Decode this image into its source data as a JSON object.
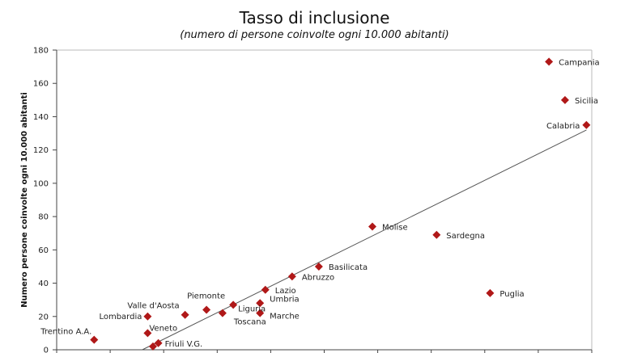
{
  "chart_data": {
    "type": "scatter",
    "title": "Tasso di inclusione",
    "subtitle": "(numero di persone coinvolte ogni 10.000 abitanti)",
    "ylabel": "Numero persone coinvolte ogni 10.000 abitanti",
    "xlabel": "",
    "ylim": [
      0,
      180
    ],
    "yticks": [
      0,
      20,
      40,
      60,
      80,
      100,
      120,
      140,
      160,
      180
    ],
    "grid": false,
    "marker_color": "#b01818",
    "trendline_color": "#555555",
    "trendline": [
      {
        "x": 0.16,
        "y": 0
      },
      {
        "x": 0.99,
        "y": 132
      }
    ],
    "points": [
      {
        "label": "Campania",
        "x": 0.92,
        "y": 173
      },
      {
        "label": "Sicilia",
        "x": 0.95,
        "y": 150
      },
      {
        "label": "Calabria",
        "x": 0.99,
        "y": 135
      },
      {
        "label": "Molise",
        "x": 0.59,
        "y": 74
      },
      {
        "label": "Sardegna",
        "x": 0.71,
        "y": 69
      },
      {
        "label": "Basilicata",
        "x": 0.49,
        "y": 50
      },
      {
        "label": "Abruzzo",
        "x": 0.44,
        "y": 44
      },
      {
        "label": "Lazio",
        "x": 0.39,
        "y": 36
      },
      {
        "label": "Puglia",
        "x": 0.81,
        "y": 34
      },
      {
        "label": "Umbria",
        "x": 0.38,
        "y": 28
      },
      {
        "label": "Marche",
        "x": 0.38,
        "y": 22
      },
      {
        "label": "Liguria",
        "x": 0.33,
        "y": 27
      },
      {
        "label": "Toscana",
        "x": 0.31,
        "y": 22
      },
      {
        "label": "Piemonte",
        "x": 0.28,
        "y": 24
      },
      {
        "label": "Valle d'Aosta",
        "x": 0.24,
        "y": 21
      },
      {
        "label": "Lombardia",
        "x": 0.17,
        "y": 20
      },
      {
        "label": "Veneto",
        "x": 0.17,
        "y": 10
      },
      {
        "label": "Trentino A.A.",
        "x": 0.07,
        "y": 6
      },
      {
        "label": "Friuli V.G.",
        "x": 0.19,
        "y": 4
      },
      {
        "label": "",
        "x": 0.18,
        "y": 2
      }
    ]
  }
}
